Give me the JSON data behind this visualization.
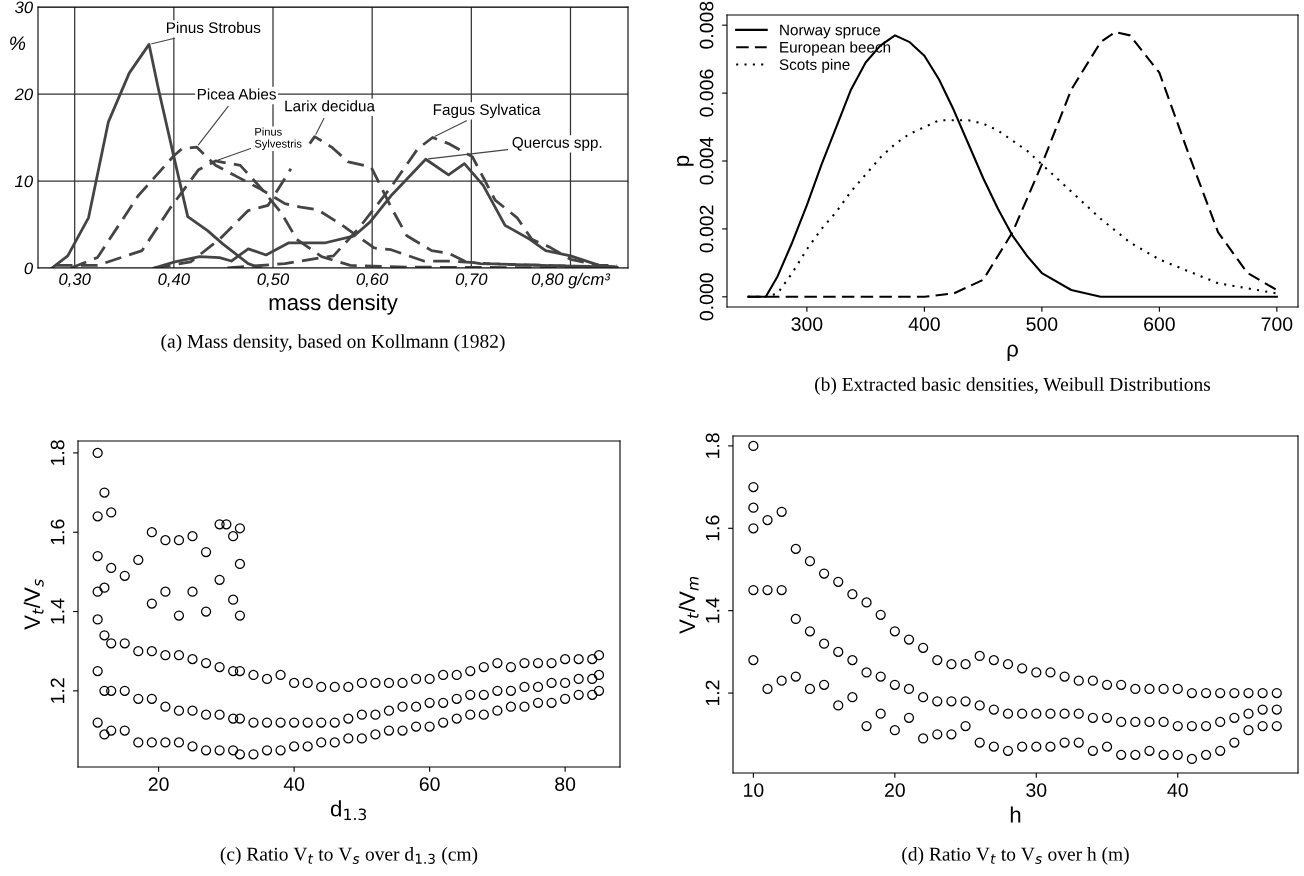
{
  "chart_data": [
    {
      "type": "line",
      "title": "(a) Mass density, based on Kollmann (1982)",
      "xlabel": "mass density",
      "ylabel": "%",
      "xlim": [
        0.263,
        0.858
      ],
      "ylim": [
        0,
        30
      ],
      "xticks": [
        {
          "value": 0.3,
          "label": "0,30"
        },
        {
          "value": 0.4,
          "label": "0,40"
        },
        {
          "value": 0.5,
          "label": "0,50"
        },
        {
          "value": 0.6,
          "label": "0,60"
        },
        {
          "value": 0.7,
          "label": "0,70"
        },
        {
          "value": 0.8,
          "label": "0,80 g/cm³"
        }
      ],
      "yticks": [
        0,
        10,
        20,
        30
      ],
      "grid": true,
      "series": [
        {
          "name": "Pinus Strobus",
          "color": "#444444",
          "line_style": "solid",
          "x": [
            0.277,
            0.293,
            0.314,
            0.334,
            0.355,
            0.375,
            0.384,
            0.4,
            0.414,
            0.434,
            0.449,
            0.475,
            0.487
          ],
          "values": [
            0,
            1.4,
            5.8,
            16.8,
            22.4,
            25.7,
            20.8,
            12.8,
            5.9,
            4.3,
            2.8,
            0.5,
            0
          ]
        },
        {
          "name": "Picea Abies",
          "color": "#444444",
          "line_style": "dashed",
          "x": [
            0.296,
            0.323,
            0.364,
            0.4,
            0.408,
            0.423,
            0.442,
            0.467,
            0.487,
            0.512,
            0.528,
            0.545,
            0.57,
            0.602,
            0.619,
            0.652,
            0.677,
            0.718,
            0.771,
            0.847
          ],
          "values": [
            0,
            1.2,
            8.3,
            12.9,
            13.7,
            13.9,
            11.8,
            10.3,
            9.1,
            7.4,
            7.0,
            6.7,
            4.9,
            2.3,
            2.1,
            0.8,
            0.8,
            0.5,
            0.3,
            0.1
          ]
        },
        {
          "name": "Pinus\nSylvestris",
          "color": "#444444",
          "line_style": "dashed",
          "x": [
            0.281,
            0.323,
            0.368,
            0.397,
            0.425,
            0.442,
            0.467,
            0.487,
            0.508,
            0.524,
            0.549,
            0.578,
            0.635,
            0.847
          ],
          "values": [
            0.3,
            0.3,
            2.0,
            7.0,
            11.3,
            12.3,
            11.8,
            9.3,
            6.4,
            3.3,
            1.3,
            0.3,
            0.1,
            0
          ]
        },
        {
          "name": "Larix decidua",
          "color": "#444444",
          "line_style": "dashed",
          "x": [
            0.38,
            0.417,
            0.446,
            0.475,
            0.495,
            0.518,
            0.528,
            0.537,
            0.542,
            0.559,
            0.576,
            0.599,
            0.619,
            0.635,
            0.66,
            0.677,
            0.693,
            0.709,
            0.847
          ],
          "values": [
            0,
            0.7,
            3.3,
            6.6,
            7.2,
            11.4,
            null,
            14.3,
            15.1,
            13.9,
            12.2,
            11.6,
            7.0,
            3.7,
            2.0,
            1.7,
            0.8,
            0.5,
            0.1
          ]
        },
        {
          "name": "Fagus Sylvatica",
          "color": "#444444",
          "line_style": "dashed",
          "x": [
            0.454,
            0.512,
            0.561,
            0.586,
            0.619,
            0.646,
            0.661,
            0.677,
            0.701,
            0.724,
            0.746,
            0.761,
            0.779,
            0.8,
            0.829,
            0.847
          ],
          "values": [
            0,
            0.5,
            1.4,
            4.5,
            9.3,
            13.7,
            15.0,
            14.3,
            12.8,
            7.8,
            5.8,
            3.3,
            2.4,
            1.0,
            0.3,
            0.3
          ]
        },
        {
          "name": "Quercus spp.",
          "color": "#444444",
          "line_style": "solid",
          "x": [
            0.38,
            0.401,
            0.426,
            0.446,
            0.458,
            0.475,
            0.493,
            0.516,
            0.553,
            0.582,
            0.598,
            0.619,
            0.654,
            0.677,
            0.693,
            0.712,
            0.734,
            0.759,
            0.775,
            0.8,
            0.829,
            0.847
          ],
          "values": [
            0,
            0.7,
            1.3,
            1.2,
            0.8,
            2.2,
            1.5,
            2.9,
            2.9,
            3.7,
            5.3,
            8.3,
            12.5,
            10.7,
            12.0,
            9.5,
            4.9,
            3.3,
            2.0,
            1.4,
            0.3,
            0.1
          ]
        }
      ]
    },
    {
      "type": "line",
      "title": "(b) Extracted basic densities, Weibull Distributions",
      "xlabel": "ρ",
      "ylabel": "p",
      "xlim": [
        232,
        718
      ],
      "ylim": [
        -0.0003,
        0.0083
      ],
      "xticks": [
        300,
        400,
        500,
        600,
        700
      ],
      "yticks": [
        {
          "value": 0,
          "label": "0.000"
        },
        {
          "value": 0.002,
          "label": "0.002"
        },
        {
          "value": 0.004,
          "label": "0.004"
        },
        {
          "value": 0.006,
          "label": "0.006"
        },
        {
          "value": 0.008,
          "label": "0.008"
        }
      ],
      "legend": "top left",
      "series": [
        {
          "name": "Norway spruce",
          "color": "#000000",
          "line_style": "solid",
          "x": [
            250,
            265,
            275,
            287.5,
            300,
            312.5,
            325,
            337.5,
            350,
            362.5,
            375,
            387.5,
            400,
            412.5,
            425,
            437.5,
            450,
            462.5,
            475,
            487.5,
            500,
            525,
            550,
            575,
            600,
            650,
            700
          ],
          "values": [
            0,
            0,
            0.0006,
            0.0016,
            0.0027,
            0.0039,
            0.005,
            0.0061,
            0.0069,
            0.0074,
            0.0077,
            0.0075,
            0.0071,
            0.0064,
            0.0055,
            0.0045,
            0.0035,
            0.0026,
            0.0018,
            0.0012,
            0.0007,
            0.0002,
            0,
            0,
            0,
            0,
            0
          ]
        },
        {
          "name": "European beech",
          "color": "#000000",
          "line_style": "dashed",
          "x": [
            250,
            300,
            350,
            400,
            425,
            450,
            475,
            500,
            525,
            550,
            562.5,
            575,
            600,
            625,
            650,
            675,
            700
          ],
          "values": [
            0,
            0,
            0,
            0,
            0.0001,
            0.0005,
            0.0019,
            0.0039,
            0.0061,
            0.0075,
            0.0078,
            0.0077,
            0.0066,
            0.0042,
            0.0019,
            0.0007,
            0.0002
          ]
        },
        {
          "name": "Scots pine",
          "color": "#000000",
          "line_style": "dotted",
          "x": [
            250,
            265,
            275,
            287.5,
            300,
            312.5,
            325,
            337.5,
            350,
            362.5,
            375,
            387.5,
            400,
            412.5,
            425,
            437.5,
            450,
            462.5,
            475,
            487.5,
            500,
            525,
            550,
            575,
            600,
            650,
            700
          ],
          "values": [
            0,
            0,
            0.0001,
            0.0007,
            0.0014,
            0.002,
            0.0025,
            0.0031,
            0.0036,
            0.0041,
            0.0045,
            0.0048,
            0.005,
            0.0052,
            0.0052,
            0.0052,
            0.0051,
            0.0049,
            0.0046,
            0.0043,
            0.0039,
            0.0031,
            0.0023,
            0.0016,
            0.0011,
            0.0004,
            0.0001
          ]
        }
      ]
    },
    {
      "type": "scatter",
      "title": "(c) Ratio V$_{t}$ to V$_{s}$ over d$_{1.3}$ (cm)",
      "xlabel": "d$_{1.3}$",
      "ylabel": "V$_{t}$/V$_{s}$",
      "xlim": [
        8.1,
        88.1
      ],
      "ylim": [
        1.008,
        1.83
      ],
      "xticks": [
        20,
        40,
        60,
        80
      ],
      "yticks": [
        1.2,
        1.4,
        1.6,
        1.8
      ],
      "marker": "circle",
      "series": [
        {
          "color": "#000000",
          "x": [
            11,
            11,
            11,
            11,
            11,
            11,
            11,
            12,
            12,
            12,
            12,
            12,
            13,
            13,
            13,
            13,
            13,
            15,
            15,
            15,
            15,
            17,
            17,
            17,
            17,
            19,
            19,
            19,
            19,
            19,
            21,
            21,
            21,
            21,
            21,
            23,
            23,
            23,
            23,
            23,
            25,
            25,
            25,
            25,
            25,
            27,
            27,
            27,
            27,
            27,
            29,
            29,
            29,
            29,
            29,
            30,
            31,
            31,
            31,
            31,
            31,
            32,
            32,
            32,
            32,
            32,
            32,
            34,
            34,
            34,
            36,
            36,
            36,
            38,
            38,
            38,
            40,
            40,
            40,
            42,
            42,
            42,
            44,
            44,
            44,
            46,
            46,
            46,
            48,
            48,
            48,
            50,
            50,
            50,
            52,
            52,
            52,
            54,
            54,
            54,
            56,
            56,
            56,
            58,
            58,
            58,
            60,
            60,
            60,
            62,
            62,
            62,
            64,
            64,
            64,
            66,
            66,
            66,
            68,
            68,
            68,
            70,
            70,
            70,
            72,
            72,
            72,
            74,
            74,
            74,
            76,
            76,
            76,
            78,
            78,
            78,
            80,
            80,
            80,
            82,
            82,
            82,
            84,
            84,
            84,
            85,
            85,
            85
          ],
          "values": [
            1.12,
            1.25,
            1.38,
            1.45,
            1.54,
            1.64,
            1.8,
            1.09,
            1.2,
            1.34,
            1.46,
            1.7,
            1.1,
            1.2,
            1.32,
            1.51,
            1.65,
            1.1,
            1.2,
            1.32,
            1.49,
            1.07,
            1.18,
            1.3,
            1.53,
            1.07,
            1.18,
            1.3,
            1.42,
            1.6,
            1.07,
            1.16,
            1.29,
            1.45,
            1.58,
            1.07,
            1.15,
            1.29,
            1.39,
            1.58,
            1.06,
            1.15,
            1.28,
            1.45,
            1.59,
            1.05,
            1.14,
            1.27,
            1.4,
            1.55,
            1.05,
            1.14,
            1.26,
            1.48,
            1.62,
            1.62,
            1.05,
            1.13,
            1.25,
            1.43,
            1.59,
            1.04,
            1.13,
            1.25,
            1.39,
            1.52,
            1.61,
            1.04,
            1.12,
            1.24,
            1.05,
            1.12,
            1.23,
            1.05,
            1.12,
            1.24,
            1.06,
            1.12,
            1.22,
            1.06,
            1.12,
            1.22,
            1.07,
            1.12,
            1.21,
            1.07,
            1.12,
            1.21,
            1.08,
            1.13,
            1.21,
            1.08,
            1.14,
            1.22,
            1.09,
            1.14,
            1.22,
            1.1,
            1.15,
            1.22,
            1.1,
            1.16,
            1.22,
            1.11,
            1.16,
            1.23,
            1.11,
            1.17,
            1.23,
            1.12,
            1.17,
            1.24,
            1.13,
            1.18,
            1.24,
            1.14,
            1.19,
            1.25,
            1.14,
            1.19,
            1.26,
            1.15,
            1.2,
            1.27,
            1.16,
            1.2,
            1.26,
            1.16,
            1.21,
            1.27,
            1.17,
            1.21,
            1.27,
            1.17,
            1.22,
            1.27,
            1.18,
            1.22,
            1.28,
            1.19,
            1.23,
            1.28,
            1.19,
            1.23,
            1.28,
            1.2,
            1.24,
            1.29
          ]
        }
      ]
    },
    {
      "type": "scatter",
      "title": "(d) Ratio V$_{t}$ to V$_{s}$ over h (m)",
      "xlabel": "h",
      "ylabel": "V$_{t}$/V$_{m}$",
      "xlim": [
        8.56,
        48.5
      ],
      "ylim": [
        1.006,
        1.824
      ],
      "xticks": [
        10,
        20,
        30,
        40
      ],
      "yticks": [
        1.2,
        1.4,
        1.6,
        1.8
      ],
      "marker": "circle",
      "series": [
        {
          "color": "#000000",
          "x": [
            10,
            10,
            10,
            10,
            10,
            10,
            11,
            11,
            11,
            12,
            12,
            12,
            13,
            13,
            13,
            14,
            14,
            14,
            15,
            15,
            15,
            16,
            16,
            16,
            17,
            17,
            17,
            18,
            18,
            18,
            19,
            19,
            19,
            20,
            20,
            20,
            21,
            21,
            21,
            22,
            22,
            22,
            23,
            23,
            23,
            24,
            24,
            24,
            25,
            25,
            25,
            26,
            26,
            26,
            27,
            27,
            27,
            28,
            28,
            28,
            29,
            29,
            29,
            30,
            30,
            30,
            31,
            31,
            31,
            32,
            32,
            32,
            33,
            33,
            33,
            34,
            34,
            34,
            35,
            35,
            35,
            36,
            36,
            36,
            37,
            37,
            37,
            38,
            38,
            38,
            39,
            39,
            39,
            40,
            40,
            40,
            41,
            41,
            41,
            42,
            42,
            42,
            43,
            43,
            43,
            44,
            44,
            44,
            45,
            45,
            45,
            46,
            46,
            46,
            47,
            47,
            47
          ],
          "values": [
            1.28,
            1.45,
            1.6,
            1.65,
            1.7,
            1.8,
            1.21,
            1.45,
            1.62,
            1.23,
            1.45,
            1.64,
            1.24,
            1.38,
            1.55,
            1.21,
            1.35,
            1.52,
            1.22,
            1.32,
            1.49,
            1.17,
            1.3,
            1.47,
            1.19,
            1.28,
            1.44,
            1.12,
            1.25,
            1.42,
            1.15,
            1.24,
            1.39,
            1.11,
            1.22,
            1.35,
            1.14,
            1.21,
            1.33,
            1.09,
            1.19,
            1.31,
            1.1,
            1.18,
            1.28,
            1.1,
            1.18,
            1.27,
            1.12,
            1.18,
            1.27,
            1.08,
            1.17,
            1.29,
            1.07,
            1.16,
            1.28,
            1.06,
            1.15,
            1.27,
            1.07,
            1.15,
            1.26,
            1.07,
            1.15,
            1.25,
            1.07,
            1.15,
            1.25,
            1.08,
            1.15,
            1.24,
            1.08,
            1.15,
            1.23,
            1.06,
            1.14,
            1.23,
            1.07,
            1.14,
            1.22,
            1.05,
            1.13,
            1.22,
            1.05,
            1.13,
            1.21,
            1.06,
            1.13,
            1.21,
            1.05,
            1.13,
            1.21,
            1.05,
            1.12,
            1.21,
            1.04,
            1.12,
            1.2,
            1.05,
            1.12,
            1.2,
            1.06,
            1.13,
            1.2,
            1.08,
            1.14,
            1.2,
            1.11,
            1.15,
            1.2,
            1.12,
            1.16,
            1.2,
            1.12,
            1.16,
            1.2
          ]
        }
      ]
    }
  ]
}
